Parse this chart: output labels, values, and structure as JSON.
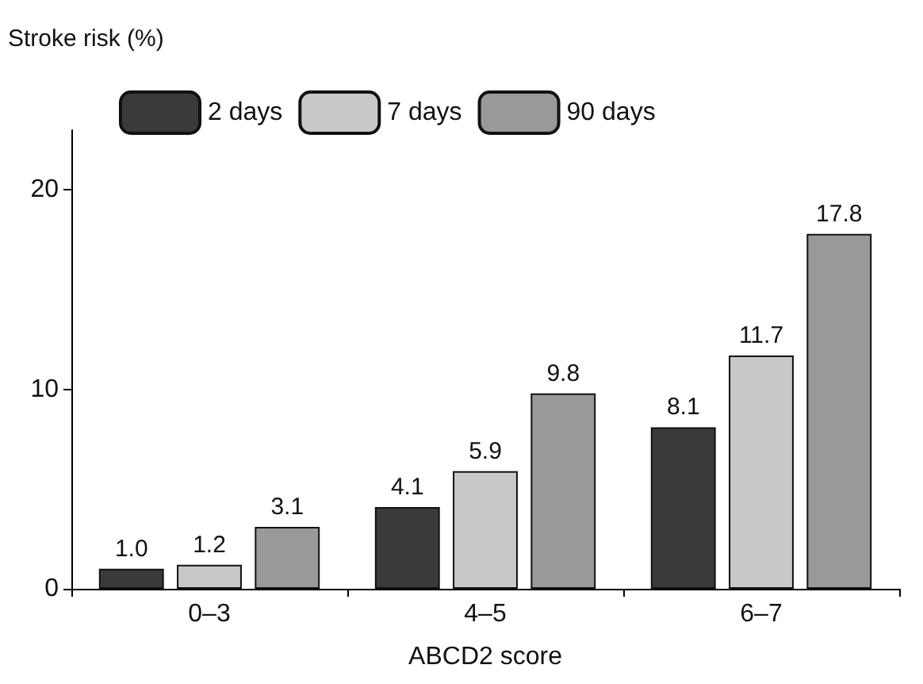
{
  "chart_data": {
    "type": "bar",
    "xlabel": "ABCD2 score",
    "ylabel": "Stroke risk (%)",
    "categories": [
      "0–3",
      "4–5",
      "6–7"
    ],
    "series": [
      {
        "name": "2 days",
        "color": "#3a3a3a",
        "values": [
          1.0,
          4.1,
          8.1
        ],
        "value_labels": [
          "1.0",
          "4.1",
          "8.1"
        ]
      },
      {
        "name": "7 days",
        "color": "#c8c8c8",
        "values": [
          1.2,
          5.9,
          11.7
        ],
        "value_labels": [
          "1.2",
          "5.9",
          "11.7"
        ]
      },
      {
        "name": "90 days",
        "color": "#999999",
        "values": [
          3.1,
          9.8,
          17.8
        ],
        "value_labels": [
          "3.1",
          "9.8",
          "17.8"
        ]
      }
    ],
    "ylim": [
      0,
      23
    ],
    "yticks": [
      0,
      10,
      20
    ],
    "grid": false,
    "legend": "top left"
  }
}
